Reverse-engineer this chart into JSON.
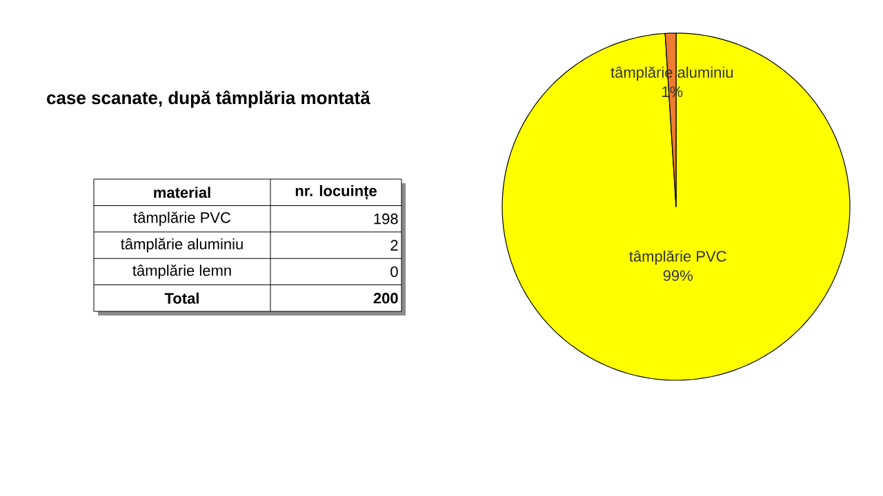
{
  "chart_data": [
    {
      "type": "other",
      "title": "case scanate, după tâmplăria montată",
      "categories": [
        "tâmplărie PVC",
        "tâmplărie aluminiu",
        "tâmplărie lemn"
      ],
      "values": [
        198,
        2,
        0
      ],
      "data_labels": true,
      "annotations": [
        "material",
        "nr. locuințe",
        "Total",
        "200"
      ]
    },
    {
      "type": "pie",
      "categories": [
        "tâmplărie PVC",
        "tâmplărie aluminiu"
      ],
      "values": [
        99,
        1
      ],
      "colors": [
        "#ffff00",
        "#ed7d31"
      ],
      "value_labels": [
        "99%",
        "1%"
      ]
    }
  ]
}
